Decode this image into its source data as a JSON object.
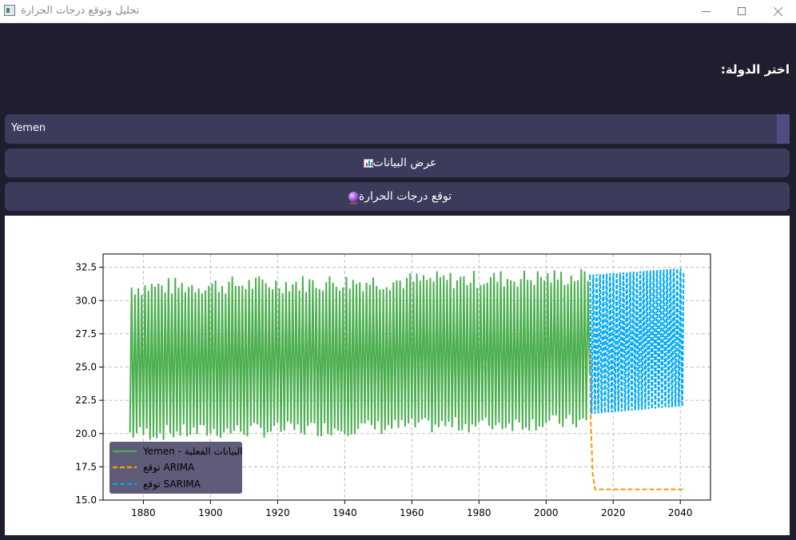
{
  "window": {
    "title": "تحليل وتوقع درجات الحرارة"
  },
  "controls": {
    "country_label": "اختر الدولة:",
    "country_value": "Yemen",
    "show_data_label": "عرض البيانات",
    "forecast_label": "توقع درجات الحرارة"
  },
  "colors": {
    "actual": "#4caf50",
    "arima": "#ff9800",
    "sarima": "#03a9f4",
    "panel": "#3d3b5c",
    "background": "#1f1e2e"
  },
  "icons": {
    "show_data": "bar-chart-icon",
    "forecast": "crystal-ball-icon"
  },
  "chart_data": {
    "type": "line",
    "xlim": [
      1868,
      2049
    ],
    "ylim": [
      15.0,
      33.5
    ],
    "xticks": [
      "1880",
      "1900",
      "1920",
      "1940",
      "1960",
      "1980",
      "2000",
      "2020",
      "2040"
    ],
    "yticks": [
      "32.5",
      "30.0",
      "27.5",
      "25.0",
      "22.5",
      "20.0",
      "17.5",
      "15.0"
    ],
    "grid": true,
    "legend_position": "bottom-left",
    "series": [
      {
        "name": "Yemen - البيانات الفعلية",
        "style": "solid",
        "x_range": [
          1876,
          2013
        ],
        "low": 20.0,
        "high": 31.0,
        "note_range_end": [
          21.5,
          32.5
        ]
      },
      {
        "name": "توقع ARIMA",
        "style": "dashed",
        "x_range": [
          2013,
          2041
        ],
        "start": 26.3,
        "end": 15.8
      },
      {
        "name": "توقع SARIMA",
        "style": "dashed",
        "x_range": [
          2013,
          2041
        ],
        "low_start": 21.4,
        "low_end": 22.0,
        "high_start": 32.0,
        "high_end": 32.5
      }
    ]
  }
}
